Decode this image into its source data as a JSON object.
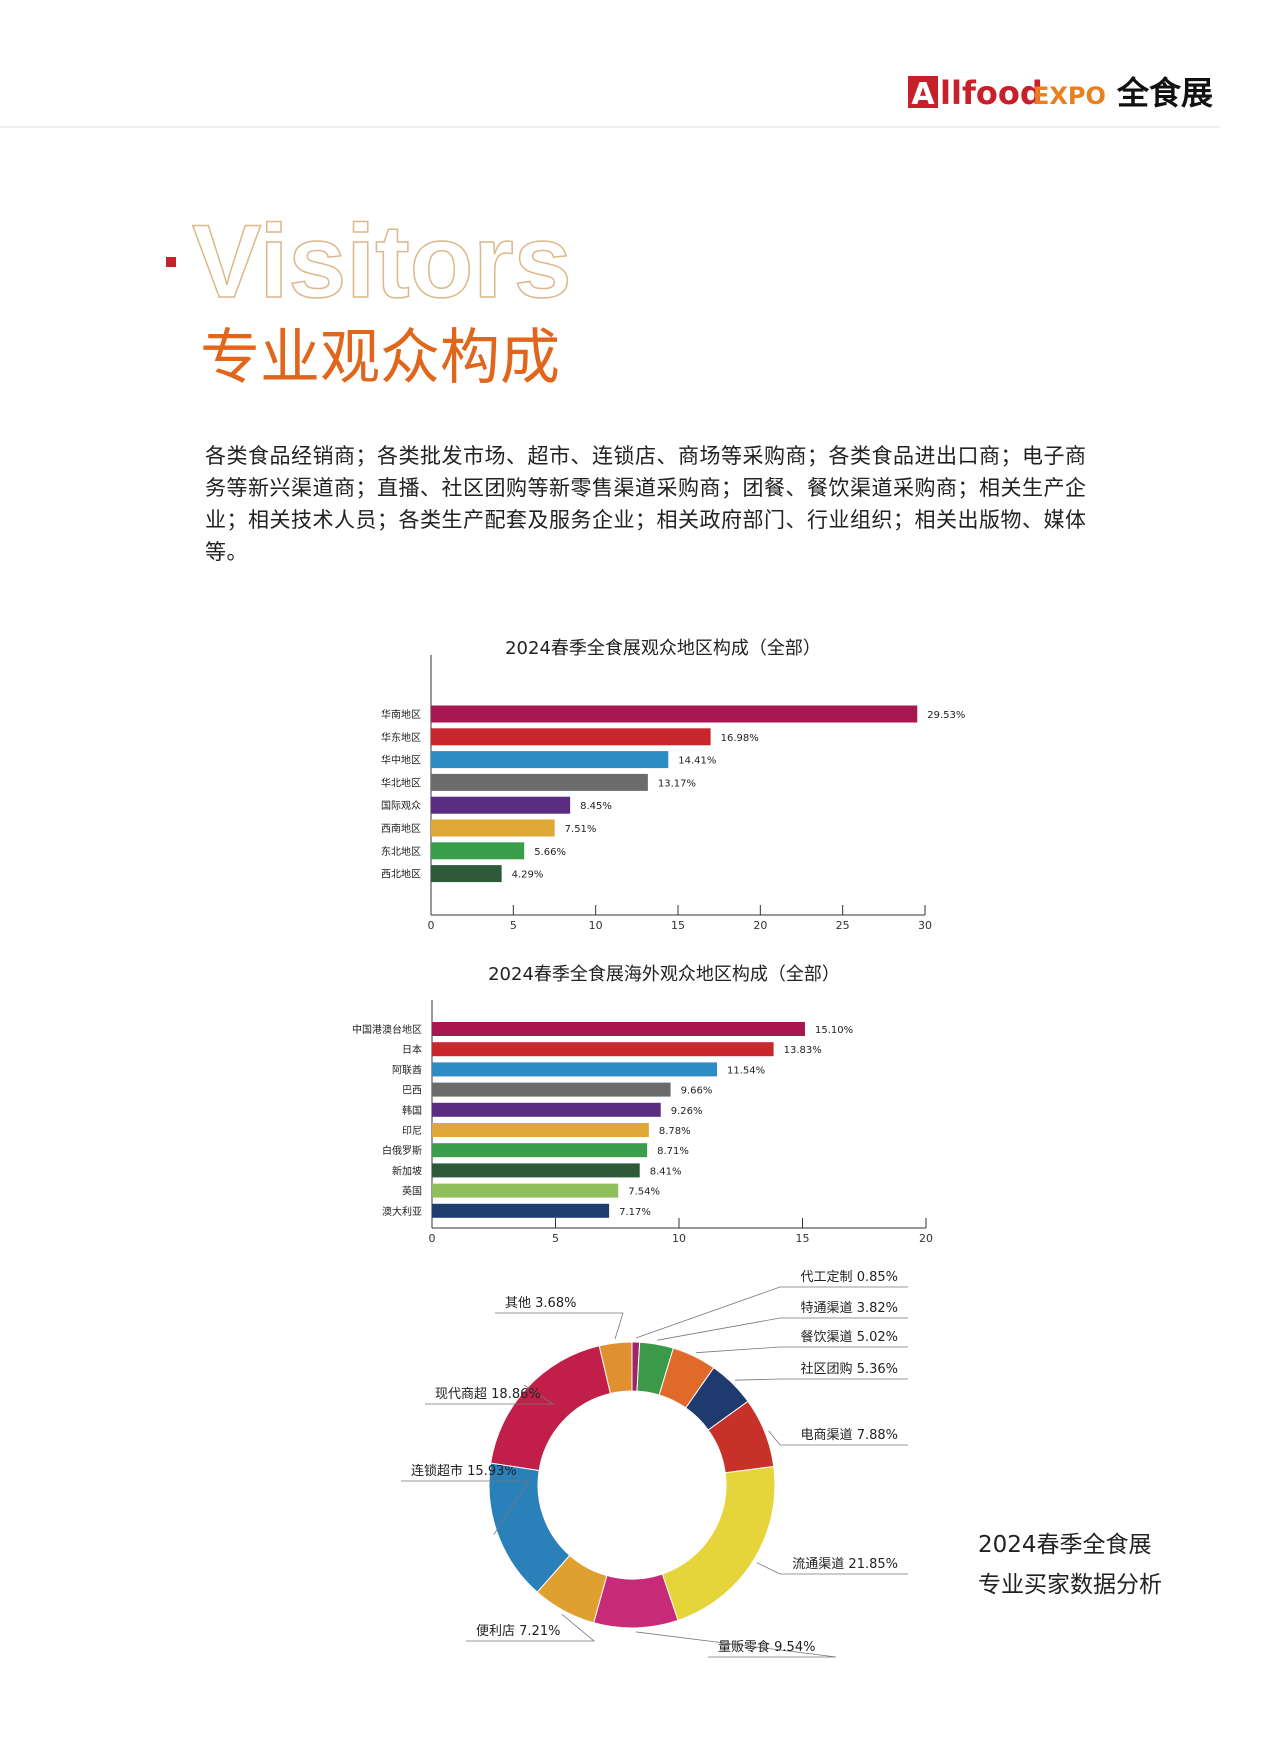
{
  "header": {
    "logo_a": "A",
    "logo_en": "llfood",
    "logo_expo": "EXPO",
    "logo_cn": "全食展"
  },
  "section": {
    "title_en": "Visitors",
    "title_cn": "专业观众构成",
    "description": "各类食品经销商；各类批发市场、超市、连锁店、商场等采购商；各类食品进出口商；电子商务等新兴渠道商；直播、社区团购等新零售渠道采购商；团餐、餐饮渠道采购商；相关生产企业；相关技术人员；各类生产配套及服务企业；相关政府部门、行业组织；相关出版物、媒体等。"
  },
  "chart_data": [
    {
      "type": "bar",
      "orientation": "horizontal",
      "title": "2024春季全食展观众地区构成（全部）",
      "categories": [
        "华南地区",
        "华东地区",
        "华中地区",
        "华北地区",
        "国际观众",
        "西南地区",
        "东北地区",
        "西北地区"
      ],
      "values": [
        29.53,
        16.98,
        14.41,
        13.17,
        8.45,
        7.51,
        5.66,
        4.29
      ],
      "value_labels": [
        "29.53%",
        "16.98%",
        "14.41%",
        "13.17%",
        "8.45%",
        "7.51%",
        "5.66%",
        "4.29%"
      ],
      "colors": [
        "#a8174f",
        "#c8282d",
        "#2e8cc4",
        "#6b6b6b",
        "#5a2d82",
        "#e0a834",
        "#3a9e4a",
        "#2d5a3a"
      ],
      "xlim": [
        0,
        30
      ],
      "xticks": [
        0,
        5,
        10,
        15,
        20,
        25,
        30
      ]
    },
    {
      "type": "bar",
      "orientation": "horizontal",
      "title": "2024春季全食展海外观众地区构成（全部）",
      "categories": [
        "中国港澳台地区",
        "日本",
        "阿联酋",
        "巴西",
        "韩国",
        "印尼",
        "白俄罗斯",
        "新加坡",
        "英国",
        "澳大利亚"
      ],
      "values": [
        15.1,
        13.83,
        11.54,
        9.66,
        9.26,
        8.78,
        8.71,
        8.41,
        7.54,
        7.17
      ],
      "value_labels": [
        "15.10%",
        "13.83%",
        "11.54%",
        "9.66%",
        "9.26%",
        "8.78%",
        "8.71%",
        "8.41%",
        "7.54%",
        "7.17%"
      ],
      "colors": [
        "#a8174f",
        "#c8282d",
        "#2e8cc4",
        "#6b6b6b",
        "#5a2d82",
        "#e0a834",
        "#3a9e4a",
        "#2d5a3a",
        "#8fbf5a",
        "#1e3f6e"
      ],
      "xlim": [
        0,
        20
      ],
      "xticks": [
        0,
        5,
        10,
        15,
        20
      ]
    },
    {
      "type": "pie",
      "donut": true,
      "categories": [
        "代工定制",
        "特通渠道",
        "餐饮渠道",
        "社区团购",
        "电商渠道",
        "流通渠道",
        "量贩零食",
        "便利店",
        "连锁超市",
        "现代商超",
        "其他"
      ],
      "values": [
        0.85,
        3.82,
        5.02,
        5.36,
        7.88,
        21.85,
        9.54,
        7.21,
        15.93,
        18.86,
        3.68
      ],
      "value_labels": [
        "0.85%",
        "3.82%",
        "5.02%",
        "5.36%",
        "7.88%",
        "21.85%",
        "9.54%",
        "7.21%",
        "15.93%",
        "18.86%",
        "3.68%"
      ],
      "colors": [
        "#a0246a",
        "#3a9a48",
        "#e06a2a",
        "#1e3a6e",
        "#c8302a",
        "#e6d53a",
        "#c82a7a",
        "#e0a030",
        "#2a80b8",
        "#c21e4a",
        "#e09030"
      ]
    }
  ],
  "caption": [
    "2024春季全食展",
    "专业买家数据分析"
  ]
}
